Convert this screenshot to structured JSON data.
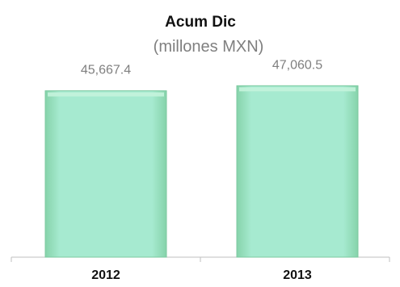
{
  "chart_data": {
    "type": "bar",
    "title": "Acum Dic",
    "subtitle": "(millones MXN)",
    "categories": [
      "2012",
      "2013"
    ],
    "values": [
      45667.4,
      47060.5
    ],
    "value_labels": [
      "45,667.4",
      "47,060.5"
    ],
    "ylim": [
      0,
      52000
    ],
    "grid": false,
    "legend": "none",
    "bar_color": "#9fe6bf",
    "bar_edge_color": "#7cc9a0",
    "axis_color": "#bfbfbf"
  }
}
